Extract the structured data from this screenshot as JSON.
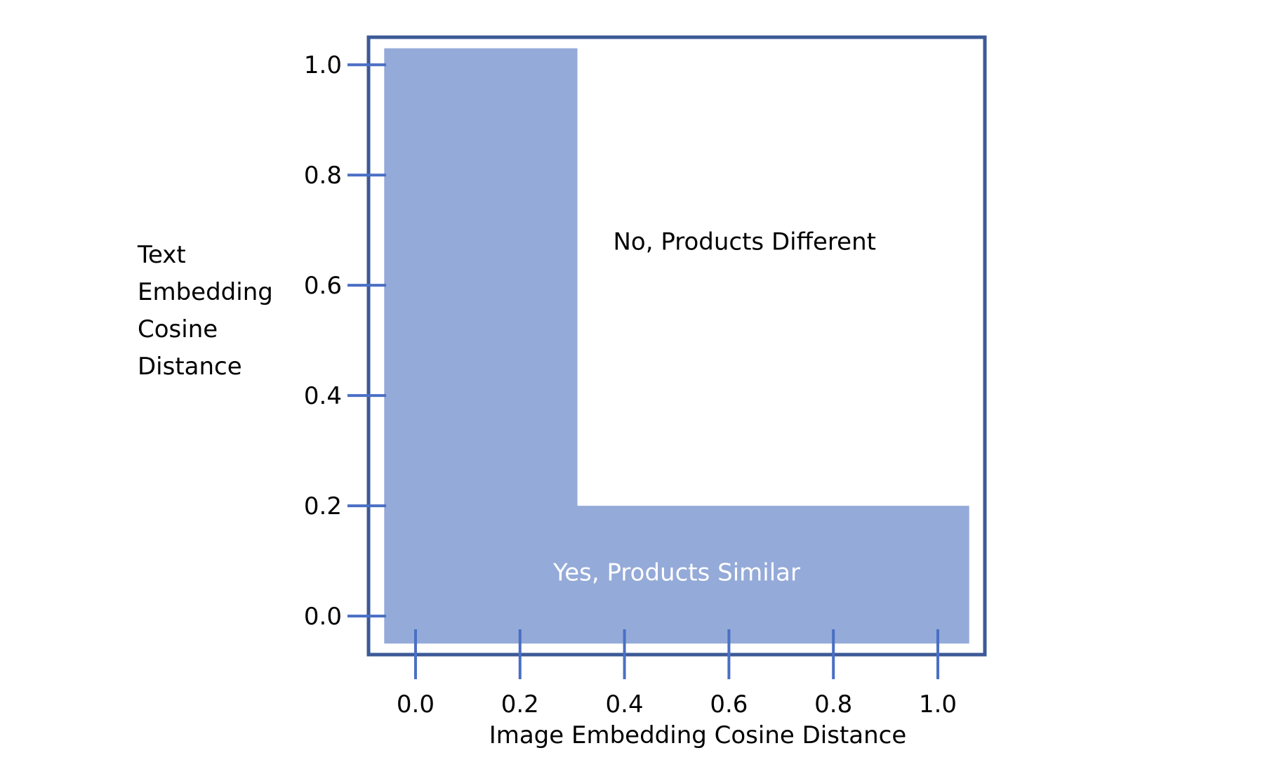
{
  "chart_data": {
    "type": "area",
    "title": "",
    "xlabel": "Image Embedding Cosine Distance",
    "ylabel_lines": [
      "Text",
      "Embedding",
      "Cosine",
      "Distance"
    ],
    "x_ticks": [
      0.0,
      0.2,
      0.4,
      0.6,
      0.8,
      1.0
    ],
    "y_ticks": [
      0.0,
      0.2,
      0.4,
      0.6,
      0.8,
      1.0
    ],
    "x_tick_labels": [
      "0.0",
      "0.2",
      "0.4",
      "0.6",
      "0.8",
      "1.0"
    ],
    "y_tick_labels": [
      "0.0",
      "0.2",
      "0.4",
      "0.6",
      "0.8",
      "1.0"
    ],
    "xlim": [
      -0.09,
      1.09
    ],
    "ylim": [
      -0.07,
      1.05
    ],
    "grid": false,
    "regions": [
      {
        "label": "Yes, Products Similar",
        "polygon": [
          [
            -0.06,
            -0.05
          ],
          [
            -0.06,
            1.03
          ],
          [
            0.31,
            1.03
          ],
          [
            0.31,
            0.2
          ],
          [
            1.06,
            0.2
          ],
          [
            1.06,
            -0.05
          ]
        ],
        "label_position": [
          0.5,
          0.08
        ],
        "label_color": "#ffffff"
      },
      {
        "label": "No, Products Different",
        "label_position": [
          0.63,
          0.68
        ],
        "label_color": "#000000"
      }
    ],
    "colors": {
      "region_fill": "#94aad8",
      "frame": "#3c5a96",
      "ticks": "#4a6fc4"
    }
  }
}
